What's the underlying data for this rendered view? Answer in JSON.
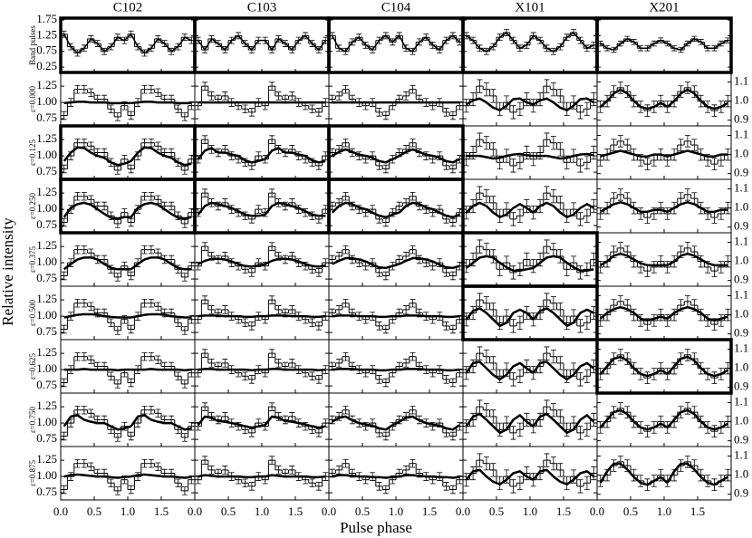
{
  "chart_data": {
    "type": "histogram-grid",
    "xlabel": "Pulse phase",
    "ylabel": "Relative intensity",
    "xlim": [
      0,
      2
    ],
    "xticks": [
      {
        "value": 0,
        "label": "0.0"
      },
      {
        "value": 0.5,
        "label": "0.5"
      },
      {
        "value": 1,
        "label": "1.0"
      },
      {
        "value": 1.5,
        "label": "1.5"
      }
    ],
    "band_ylim": [
      0.08,
      1.81
    ],
    "band_yticks": [
      0.25,
      0.75,
      1.25,
      1.75
    ],
    "ylim": [
      0.64,
      1.46
    ],
    "yticks": [
      0.75,
      {
        "value": 1,
        "label": "1.00"
      },
      1.25
    ],
    "y2lim": [
      0.87,
      1.15
    ],
    "y2ticks": [
      0.9,
      {
        "value": 1,
        "label": "1.0"
      },
      1.1
    ],
    "rows": [
      "Band pulses",
      "ε=0.000",
      "ε=0.125",
      "ε=0.250",
      "ε=0.375",
      "ε=0.500",
      "ε=0.625",
      "ε=0.750",
      "ε=0.875"
    ],
    "columns": [
      {
        "name": "C102",
        "axis": "y",
        "boxed_rows": [
          0,
          2,
          3
        ],
        "band_error": 0.1,
        "error": 0.06,
        "band": [
          1.3,
          0.9,
          0.7,
          0.85,
          1.15,
          1.0,
          0.75,
          0.9,
          1.2,
          1.1
        ],
        "data": [
          0.8,
          1.0,
          1.2,
          1.2,
          1.15,
          1.05,
          1.05,
          0.9,
          0.78,
          0.95
        ],
        "models": [
          [
            0.99,
            1.0,
            1.01,
            1.01,
            1.0,
            1.0,
            1.0,
            0.99,
            0.99,
            0.99
          ],
          [
            0.92,
            1.05,
            1.13,
            1.12,
            1.05,
            1.0,
            0.97,
            0.9,
            0.86,
            0.88
          ],
          [
            0.88,
            1.02,
            1.08,
            1.1,
            1.07,
            1.0,
            0.93,
            0.87,
            0.86,
            0.88
          ],
          [
            0.9,
            0.98,
            1.05,
            1.08,
            1.08,
            1.05,
            0.98,
            0.92,
            0.9,
            0.9
          ],
          [
            0.98,
            1.0,
            1.02,
            1.03,
            1.03,
            1.02,
            1.0,
            0.99,
            0.98,
            0.98
          ],
          [
            1.0,
            1.0,
            1.0,
            1.01,
            1.0,
            1.0,
            1.0,
            1.0,
            0.99,
            1.0
          ],
          [
            0.95,
            1.1,
            1.12,
            1.05,
            1.02,
            1.0,
            1.0,
            0.95,
            0.9,
            0.92
          ],
          [
            1.0,
            1.02,
            1.03,
            1.02,
            1.01,
            1.0,
            1.0,
            0.99,
            0.98,
            0.99
          ]
        ]
      },
      {
        "name": "C103",
        "axis": "y",
        "boxed_rows": [
          0,
          2,
          3
        ],
        "band_error": 0.1,
        "error": 0.06,
        "band": [
          1.1,
          0.8,
          1.15,
          1.0,
          0.8,
          1.1,
          1.25,
          1.0,
          0.8,
          1.1
        ],
        "data": [
          0.95,
          1.25,
          1.1,
          1.05,
          1.1,
          1.0,
          0.95,
          0.9,
          0.85,
          1.0
        ],
        "models": [
          [
            1.0,
            1.0,
            1.0,
            1.0,
            1.0,
            1.0,
            1.0,
            1.0,
            1.0,
            1.0
          ],
          [
            0.95,
            1.08,
            1.12,
            1.05,
            1.05,
            1.02,
            1.0,
            0.93,
            0.9,
            0.92
          ],
          [
            0.92,
            1.05,
            1.1,
            1.08,
            1.05,
            1.02,
            0.97,
            0.92,
            0.9,
            0.9
          ],
          [
            0.98,
            1.03,
            1.06,
            1.06,
            1.05,
            1.02,
            0.98,
            0.95,
            0.94,
            0.96
          ],
          [
            1.0,
            1.01,
            1.01,
            1.01,
            1.0,
            1.0,
            1.0,
            0.99,
            0.99,
            1.0
          ],
          [
            1.0,
            1.01,
            1.01,
            1.0,
            1.0,
            1.0,
            1.0,
            1.0,
            0.99,
            1.0
          ],
          [
            0.97,
            1.1,
            1.08,
            1.03,
            1.02,
            1.0,
            0.98,
            0.95,
            0.93,
            0.95
          ],
          [
            1.0,
            1.02,
            1.01,
            1.0,
            1.0,
            1.0,
            1.0,
            0.99,
            0.99,
            1.0
          ]
        ]
      },
      {
        "name": "C104",
        "axis": "y",
        "boxed_rows": [
          0,
          2,
          3
        ],
        "band_error": 0.1,
        "error": 0.06,
        "band": [
          1.25,
          0.85,
          0.75,
          1.05,
          1.2,
          0.95,
          0.8,
          1.1,
          1.25,
          1.05
        ],
        "data": [
          1.05,
          1.1,
          1.2,
          1.05,
          1.0,
          0.95,
          1.0,
          0.85,
          0.8,
          0.95
        ],
        "models": [
          [
            1.0,
            1.0,
            1.0,
            1.0,
            1.0,
            1.0,
            1.0,
            1.0,
            1.0,
            1.0
          ],
          [
            1.0,
            1.06,
            1.1,
            1.06,
            1.02,
            1.0,
            0.97,
            0.92,
            0.9,
            0.95
          ],
          [
            0.95,
            1.05,
            1.1,
            1.08,
            1.03,
            1.0,
            0.95,
            0.9,
            0.88,
            0.92
          ],
          [
            0.98,
            1.03,
            1.07,
            1.07,
            1.05,
            1.02,
            0.97,
            0.93,
            0.92,
            0.95
          ],
          [
            1.0,
            1.01,
            1.01,
            1.01,
            1.0,
            1.0,
            1.0,
            0.99,
            0.99,
            1.0
          ],
          [
            1.0,
            1.01,
            1.01,
            1.01,
            1.0,
            1.0,
            1.0,
            0.99,
            0.99,
            1.0
          ],
          [
            1.02,
            1.08,
            1.1,
            1.04,
            1.0,
            0.98,
            0.96,
            0.92,
            0.9,
            0.97
          ],
          [
            1.0,
            1.02,
            1.02,
            1.01,
            1.0,
            1.0,
            0.99,
            0.99,
            0.98,
            0.99
          ]
        ]
      },
      {
        "name": "X101",
        "axis": "y",
        "boxed_rows": [
          0,
          4,
          5
        ],
        "band_error": 0.1,
        "error": 0.1,
        "band": [
          1.25,
          1.1,
          0.85,
          0.75,
          0.9,
          1.2,
          1.35,
          1.1,
          0.85,
          0.95
        ],
        "data": [
          0.95,
          1.05,
          1.25,
          1.2,
          1.1,
          0.9,
          1.0,
          0.85,
          0.9,
          1.05
        ],
        "models": [
          [
            0.97,
            1.03,
            1.06,
            1.0,
            0.92,
            0.88,
            0.95,
            1.05,
            1.06,
            1.0
          ],
          [
            1.0,
            1.0,
            1.0,
            0.98,
            0.96,
            0.97,
            1.0,
            1.02,
            1.03,
            1.01
          ],
          [
            0.95,
            1.05,
            1.1,
            1.05,
            0.95,
            0.88,
            0.92,
            1.02,
            1.08,
            1.02
          ],
          [
            0.92,
            1.0,
            1.08,
            1.1,
            1.08,
            1.0,
            0.93,
            0.88,
            0.88,
            0.9
          ],
          [
            0.95,
            1.08,
            1.12,
            1.05,
            0.95,
            0.85,
            0.9,
            1.05,
            1.1,
            1.05
          ],
          [
            0.95,
            1.1,
            1.12,
            1.02,
            0.92,
            0.85,
            0.92,
            1.05,
            1.1,
            1.02
          ],
          [
            0.95,
            1.1,
            1.14,
            1.05,
            0.95,
            0.85,
            0.9,
            1.05,
            1.12,
            1.02
          ],
          [
            0.95,
            1.08,
            1.1,
            1.0,
            0.92,
            0.88,
            0.95,
            1.05,
            1.08,
            1.0
          ]
        ]
      },
      {
        "name": "X201",
        "axis": "y2",
        "boxed_rows": [
          0,
          6
        ],
        "band_error": 0.08,
        "error": 0.03,
        "band": [
          1.0,
          0.85,
          0.8,
          1.0,
          1.15,
          1.05,
          0.85,
          0.85,
          1.0,
          1.1
        ],
        "data": [
          0.97,
          1.0,
          1.05,
          1.07,
          1.05,
          1.0,
          0.97,
          0.95,
          0.97,
          1.0
        ],
        "models": [
          [
            0.97,
            1.0,
            1.04,
            1.06,
            1.04,
            1.0,
            0.97,
            0.96,
            0.97,
            0.99
          ],
          [
            0.99,
            1.0,
            1.01,
            1.02,
            1.01,
            1.0,
            0.99,
            0.99,
            1.0,
            1.0
          ],
          [
            0.98,
            1.0,
            1.02,
            1.03,
            1.02,
            1.0,
            0.98,
            0.98,
            0.99,
            0.99
          ],
          [
            0.98,
            1.0,
            1.03,
            1.04,
            1.03,
            1.01,
            0.99,
            0.98,
            0.98,
            0.98
          ],
          [
            0.98,
            1.01,
            1.03,
            1.04,
            1.03,
            1.01,
            0.98,
            0.97,
            0.98,
            0.99
          ],
          [
            0.97,
            1.01,
            1.05,
            1.06,
            1.04,
            1.0,
            0.97,
            0.96,
            0.97,
            0.99
          ],
          [
            0.97,
            1.01,
            1.05,
            1.06,
            1.04,
            1.0,
            0.97,
            0.96,
            0.97,
            0.99
          ],
          [
            0.96,
            1.02,
            1.06,
            1.06,
            1.03,
            0.99,
            0.96,
            0.95,
            0.97,
            0.99
          ]
        ]
      }
    ]
  }
}
